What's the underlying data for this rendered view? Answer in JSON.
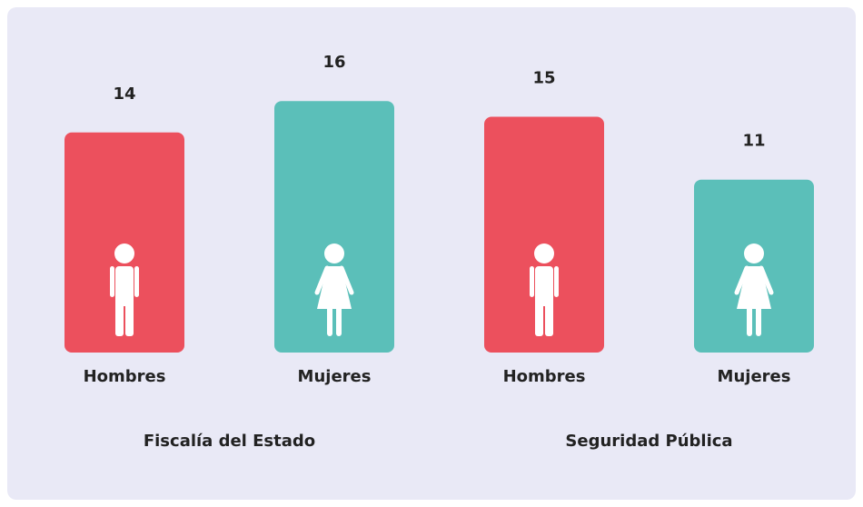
{
  "chart_data": {
    "type": "bar",
    "categories": [
      "Fiscalía del Estado",
      "Seguridad Pública"
    ],
    "series": [
      {
        "name": "Hombres",
        "color": "#ec505d",
        "values": [
          14,
          15
        ]
      },
      {
        "name": "Mujeres",
        "color": "#5bbfb9",
        "values": [
          16,
          11
        ]
      }
    ]
  }
}
